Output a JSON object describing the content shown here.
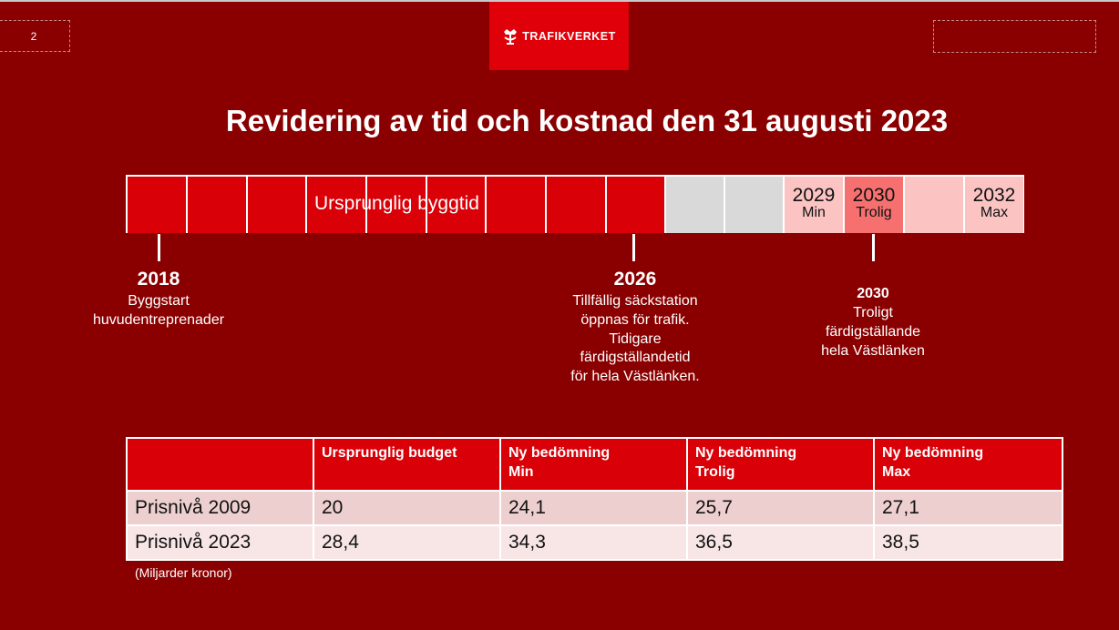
{
  "slide": {
    "page_number": "2",
    "title": "Revidering av tid och kostnad den 31 augusti 2023"
  },
  "logo": {
    "text": "TRAFIKVERKET"
  },
  "timeline": {
    "bar_label": "Ursprunglig byggtid",
    "min": {
      "year": "2029",
      "sub": "Min"
    },
    "trolig": {
      "year": "2030",
      "sub": "Trolig"
    },
    "max": {
      "year": "2032",
      "sub": "Max"
    }
  },
  "milestones": {
    "start": {
      "year": "2018",
      "lines": [
        "Byggstart",
        "huvudentreprenader"
      ]
    },
    "mid": {
      "year": "2026",
      "lines": [
        "Tillfällig säckstation",
        "öppnas för trafik.",
        "Tidigare",
        "färdigställandetid",
        "för hela Västlänken."
      ]
    },
    "end": {
      "year": "2030",
      "lines": [
        "Troligt",
        "färdigställande",
        "hela Västlänken"
      ]
    }
  },
  "cost_table": {
    "headers": [
      "",
      "Ursprunglig budget",
      "Ny bedömning\nMin",
      "Ny bedömning\nTrolig",
      "Ny bedömning\nMax"
    ],
    "rows": [
      [
        "Prisnivå 2009",
        "20",
        "24,1",
        "25,7",
        "27,1"
      ],
      [
        "Prisnivå 2023",
        "28,4",
        "34,3",
        "36,5",
        "38,5"
      ]
    ],
    "footnote": "(Miljarder kronor)"
  }
}
